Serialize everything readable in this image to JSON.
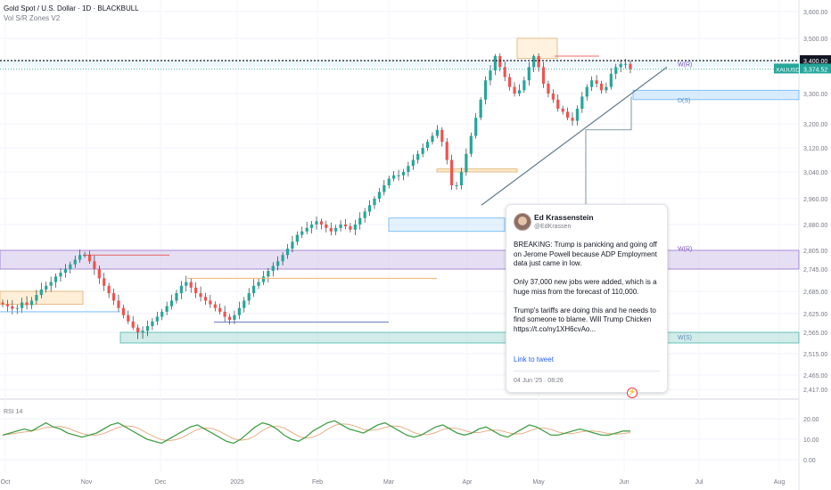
{
  "legend": {
    "symbol_line": "Gold Spot / U.S. Dollar · 1D · BLACKBULL",
    "indicator": "Vol S/R Zones V2"
  },
  "colors": {
    "up": "#26a69a",
    "down": "#ef5350",
    "wick": "#131722",
    "support_zone": "#b2dfdb",
    "resistance_zone": "#d1c4e9",
    "trend": "#607d8b",
    "rsi": "#43a047",
    "rsi_ma": "#e5a77a"
  },
  "chart_data": {
    "type": "candlestick",
    "symbol": "XAUUSD",
    "last_price": "3,374.52",
    "price_line_label": "3,400.00",
    "y_ticks": [
      "3,600.00",
      "3,500.00",
      "3,400.00",
      "3,300.00",
      "3,200.00",
      "3,120.00",
      "3,040.00",
      "2,960.00",
      "2,880.00",
      "2,805.00",
      "2,745.00",
      "2,685.00",
      "2,625.00",
      "2,565.00",
      "2,515.00",
      "2,465.00",
      "2,417.00"
    ],
    "x_ticks": [
      "Oct",
      "Nov",
      "Dec",
      "2025",
      "Feb",
      "Mar",
      "Apr",
      "May",
      "Jun",
      "Jul",
      "Aug"
    ],
    "zone_labels": [
      "W(R)",
      "D(S)",
      "W(R)",
      "W(S)"
    ],
    "close_path": [
      2650,
      2645,
      2638,
      2640,
      2655,
      2648,
      2660,
      2675,
      2690,
      2700,
      2710,
      2725,
      2735,
      2745,
      2760,
      2775,
      2790,
      2790,
      2770,
      2745,
      2720,
      2700,
      2680,
      2660,
      2640,
      2620,
      2600,
      2580,
      2565,
      2570,
      2585,
      2600,
      2615,
      2630,
      2645,
      2660,
      2680,
      2700,
      2710,
      2695,
      2680,
      2670,
      2660,
      2650,
      2640,
      2630,
      2615,
      2605,
      2620,
      2640,
      2660,
      2680,
      2700,
      2710,
      2725,
      2740,
      2755,
      2770,
      2790,
      2810,
      2830,
      2850,
      2860,
      2870,
      2880,
      2890,
      2880,
      2870,
      2860,
      2870,
      2880,
      2875,
      2865,
      2880,
      2900,
      2920,
      2940,
      2960,
      2980,
      3000,
      3020,
      3030,
      3030,
      3040,
      3060,
      3080,
      3100,
      3120,
      3140,
      3160,
      3180,
      3140,
      3080,
      3000,
      3000,
      3040,
      3100,
      3160,
      3220,
      3280,
      3340,
      3370,
      3420,
      3380,
      3350,
      3320,
      3300,
      3310,
      3340,
      3380,
      3420,
      3380,
      3330,
      3300,
      3280,
      3250,
      3240,
      3220,
      3210,
      3250,
      3290,
      3320,
      3340,
      3330,
      3310,
      3320,
      3360,
      3380,
      3390,
      3390,
      3374.52
    ],
    "rsi": {
      "name": "RSI 14",
      "ticks": [
        "20.00",
        "10.00",
        "0.00"
      ],
      "values": [
        12,
        13,
        14,
        15,
        14,
        16,
        18,
        16,
        15,
        13,
        12,
        11,
        12,
        13,
        15,
        17,
        18,
        16,
        14,
        12,
        10,
        9,
        8,
        10,
        12,
        14,
        16,
        17,
        15,
        13,
        11,
        9,
        8,
        10,
        13,
        16,
        18,
        17,
        15,
        12,
        10,
        9,
        11,
        14,
        16,
        18,
        19,
        17,
        15,
        14,
        13,
        15,
        17,
        18,
        16,
        14,
        12,
        11,
        12,
        14,
        16,
        17,
        15,
        13,
        12,
        13,
        15,
        16,
        14,
        12,
        11,
        13,
        15,
        17,
        16,
        14,
        12,
        12,
        13,
        14,
        15,
        14,
        13,
        12,
        12,
        13,
        14,
        14
      ]
    }
  },
  "tweet": {
    "name": "Ed Krassenstein",
    "handle": "@EdKrassen",
    "p1": "BREAKING: Trump is panicking and going off on Jerome Powell because ADP Employment data just came in low.",
    "p2": "Only 37,000 new jobs were added, which is a huge miss from the forecast of 110,000.",
    "p3": "Trump's tariffs are doing this and he needs to find someone to blame. Will Trump Chicken https://t.co/ny1XH6cvAo...",
    "link": "Link to tweet",
    "date": "04 Jun '25 · 08:26"
  },
  "event_icon": "lightning-icon"
}
